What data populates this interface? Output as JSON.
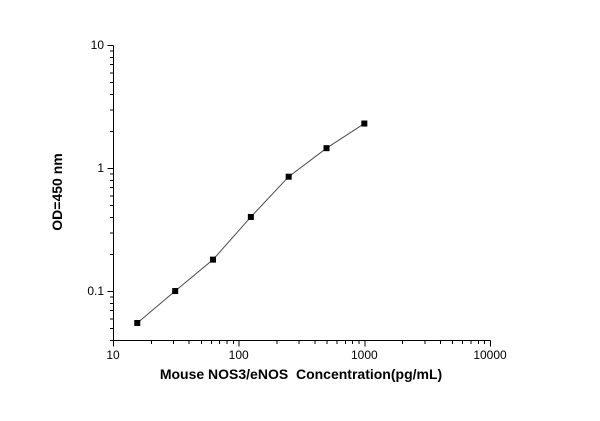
{
  "chart_data": {
    "type": "scatter",
    "title": "",
    "xlabel": "Mouse NOS3/eNOS  Concentration(pg/mL)",
    "ylabel": "OD=450 nm",
    "xscale": "log",
    "yscale": "log",
    "xlim": [
      10,
      10000
    ],
    "ylim": [
      0.04,
      10
    ],
    "x": [
      15.6,
      31.25,
      62.5,
      125,
      250,
      500,
      1000
    ],
    "y": [
      0.055,
      0.1,
      0.18,
      0.4,
      0.85,
      1.45,
      2.3
    ],
    "x_ticks": [
      10,
      100,
      1000,
      10000
    ],
    "x_tick_labels": [
      "10",
      "100",
      "1000",
      "10000"
    ],
    "y_ticks": [
      0.1,
      1,
      10
    ],
    "y_tick_labels": [
      "0.1",
      "1",
      "10"
    ],
    "grid": false,
    "legend": null,
    "marker": "filled-square",
    "colors": {
      "axis": "#000000",
      "tick_label": "#000000",
      "marker": "#000000",
      "line": "#4a4a4a",
      "background": "#ffffff"
    }
  }
}
